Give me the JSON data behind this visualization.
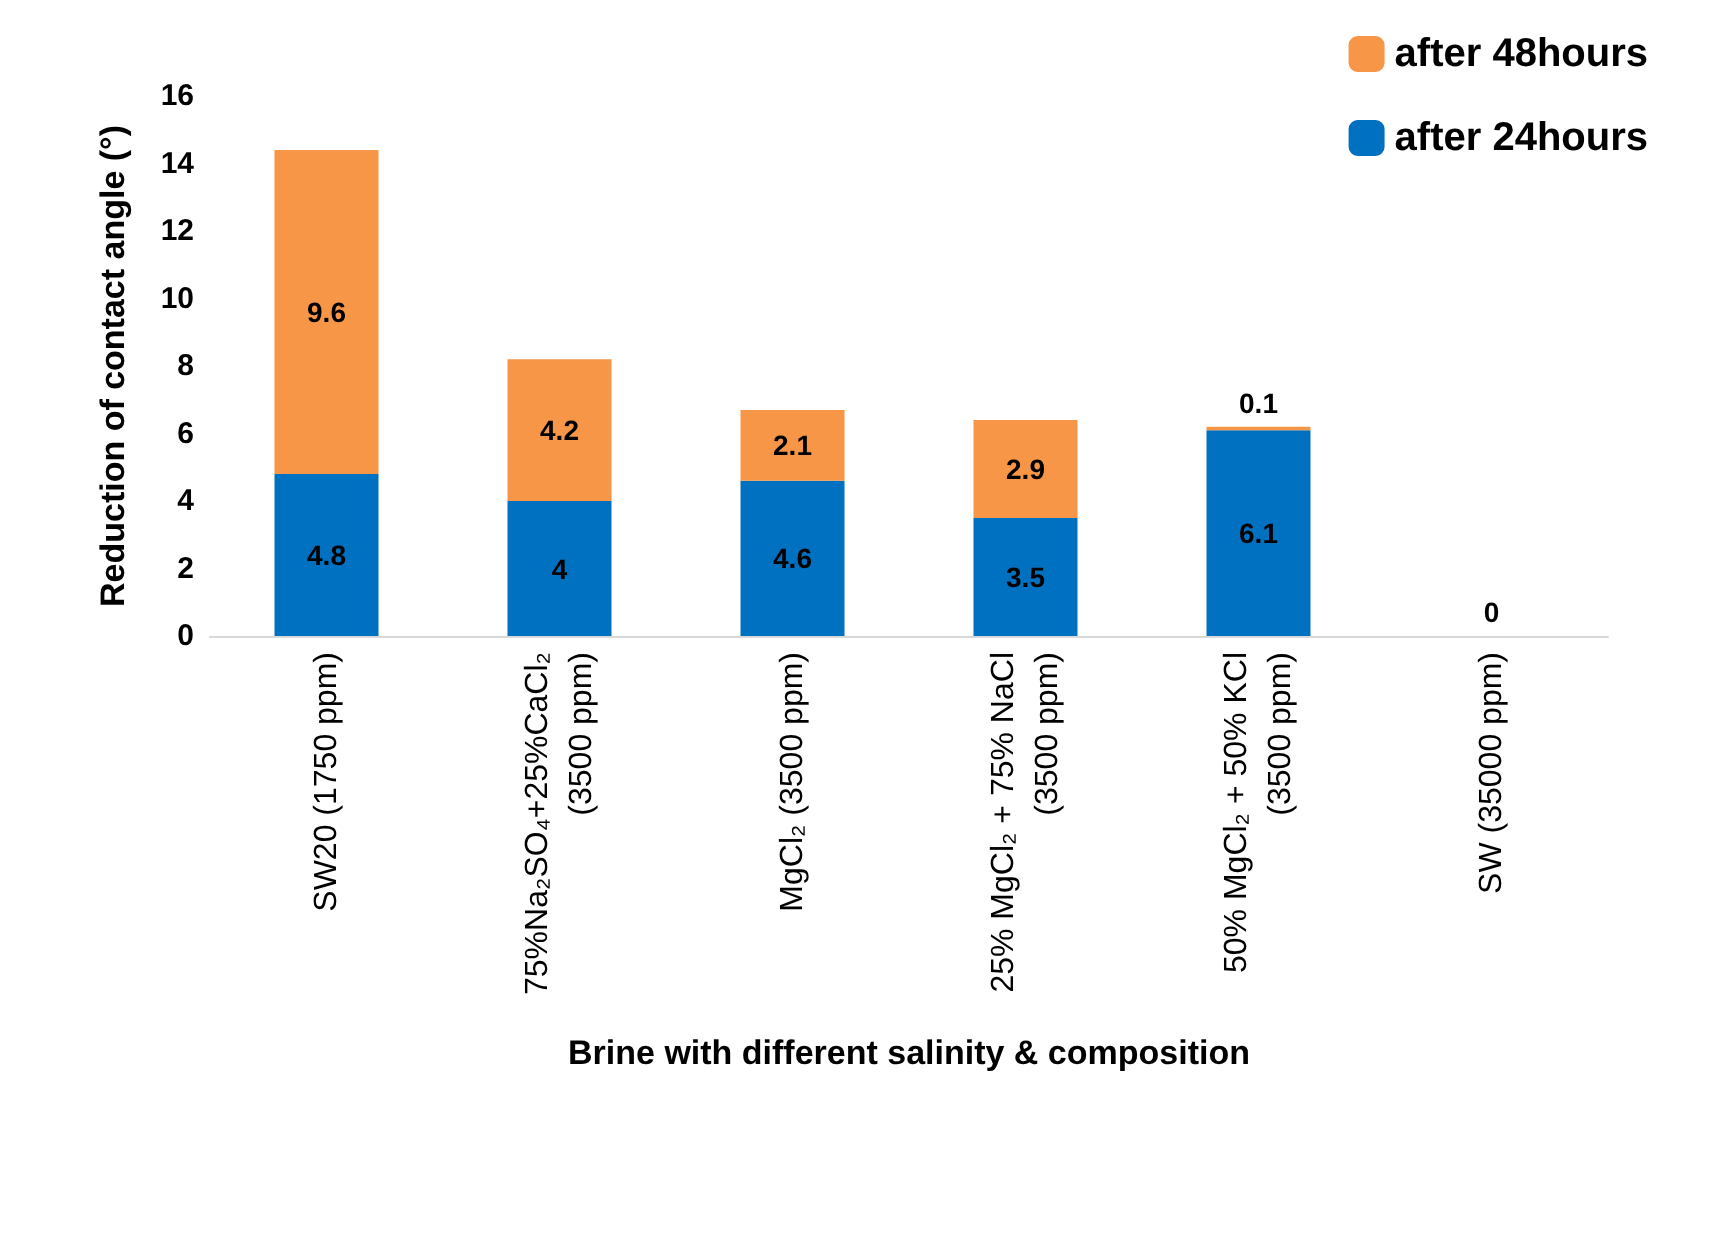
{
  "chart_data": {
    "type": "bar",
    "stacked": true,
    "xlabel": "Brine with different salinity & composition",
    "ylabel": "Reduction of contact angle (°)",
    "categories": [
      "SW20 (1750 ppm)",
      "75%Na₂SO₄+25%CaCl₂\n(3500 ppm)",
      "MgCl₂ (3500 ppm)",
      "25% MgCl₂ + 75% NaCl\n(3500 ppm)",
      "50% MgCl₂ + 50% KCl\n(3500 ppm)",
      "SW (35000 ppm)"
    ],
    "series": [
      {
        "name": "after 24hours",
        "color": "#0070c0",
        "values": [
          4.8,
          4,
          4.6,
          3.5,
          6.1,
          0
        ],
        "value_labels": [
          "4.8",
          "4",
          "4.6",
          "3.5",
          "6.1",
          null
        ]
      },
      {
        "name": "after 48hours",
        "color": "#f79646",
        "values": [
          9.6,
          4.2,
          2.1,
          2.9,
          0.1,
          0
        ],
        "value_labels": [
          "9.6",
          "4.2",
          "2.1",
          "2.9",
          "0.1",
          "0"
        ]
      }
    ],
    "ylim": [
      0,
      16
    ],
    "yticks": [
      0,
      2,
      4,
      6,
      8,
      10,
      12,
      14,
      16
    ],
    "grid": false,
    "legend": "top right"
  }
}
